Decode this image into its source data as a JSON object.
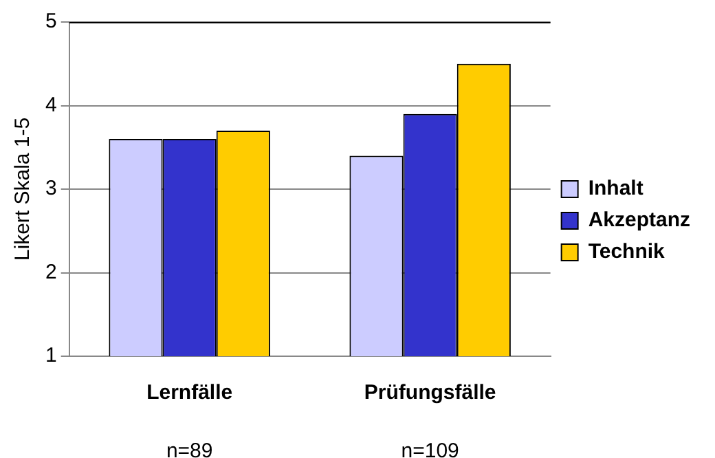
{
  "chart_data": {
    "type": "bar",
    "ylabel": "Likert Skala 1-5",
    "categories": [
      "Lernfälle",
      "Prüfungsfälle"
    ],
    "series": [
      {
        "name": "Inhalt",
        "color": "#ccccff",
        "values": [
          3.6,
          3.4
        ]
      },
      {
        "name": "Akzeptanz",
        "color": "#3333cc",
        "values": [
          3.6,
          3.9
        ]
      },
      {
        "name": "Technik",
        "color": "#ffcc00",
        "values": [
          3.7,
          4.5
        ]
      }
    ],
    "annotations": [
      "n=89",
      "n=109"
    ],
    "ylim": [
      1,
      5
    ],
    "yticks": [
      1,
      2,
      3,
      4,
      5
    ],
    "grid": "y",
    "legend": "right"
  }
}
